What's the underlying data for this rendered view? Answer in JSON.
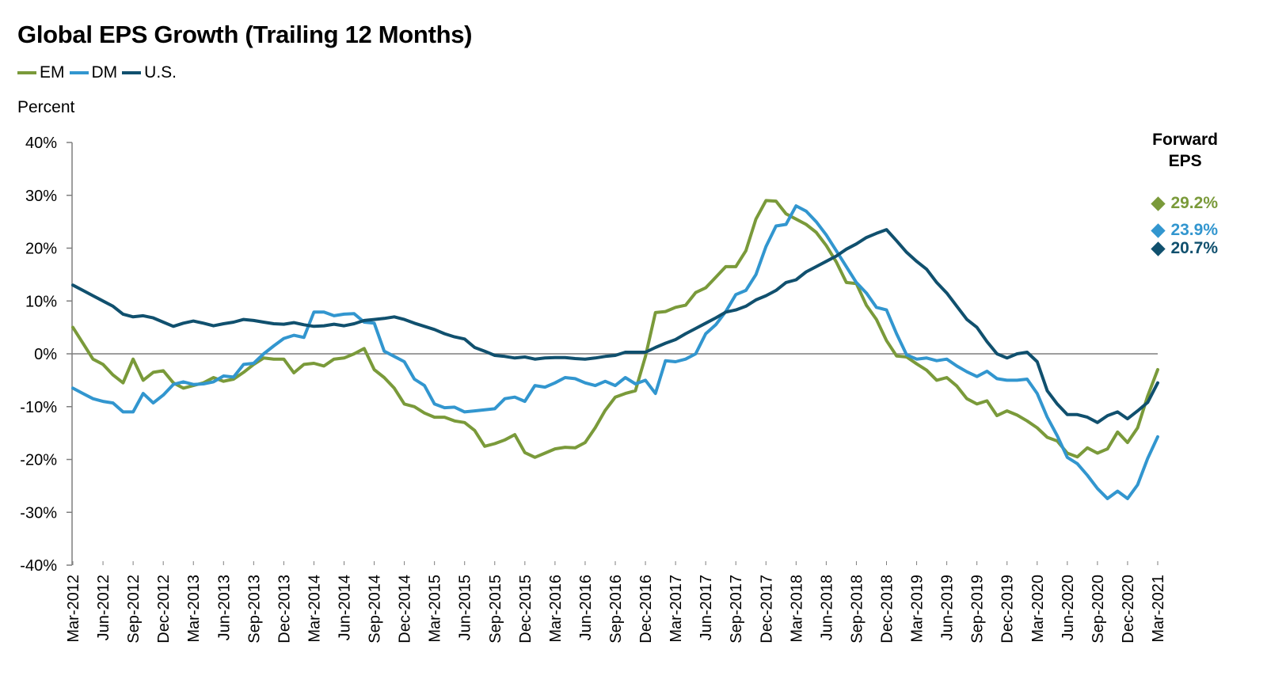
{
  "chart_data": {
    "type": "line",
    "title": "Global EPS Growth (Trailing 12 Months)",
    "ylabel": "Percent",
    "ylim": [
      -40,
      40
    ],
    "yticks": [
      "-40%",
      "-30%",
      "-20%",
      "-10%",
      "0%",
      "10%",
      "20%",
      "30%",
      "40%"
    ],
    "yvalues": [
      -40,
      -30,
      -20,
      -10,
      0,
      10,
      20,
      30,
      40
    ],
    "x_tick_labels": [
      "Mar-2012",
      "Jun-2012",
      "Sep-2012",
      "Dec-2012",
      "Mar-2013",
      "Jun-2013",
      "Sep-2013",
      "Dec-2013",
      "Mar-2014",
      "Jun-2014",
      "Sep-2014",
      "Dec-2014",
      "Mar-2015",
      "Jun-2015",
      "Sep-2015",
      "Dec-2015",
      "Mar-2016",
      "Jun-2016",
      "Sep-2016",
      "Dec-2016",
      "Mar-2017",
      "Jun-2017",
      "Sep-2017",
      "Dec-2017",
      "Mar-2018",
      "Jun-2018",
      "Sep-2018",
      "Dec-2018",
      "Mar-2019",
      "Jun-2019",
      "Sep-2019",
      "Dec-2019",
      "Mar-2020",
      "Jun-2020",
      "Sep-2020",
      "Dec-2020",
      "Mar-2021"
    ],
    "series": [
      {
        "name": "EM",
        "color": "#7a9a3a",
        "values": [
          5,
          2,
          -1,
          -2,
          -4,
          -5.5,
          -1,
          -5,
          -3.5,
          -3.2,
          -5.5,
          -6.5,
          -6,
          -5.5,
          -4.5,
          -5.2,
          -4.8,
          -3.5,
          -2,
          -0.8,
          -1,
          -1,
          -3.6,
          -2,
          -1.8,
          -2.3,
          -1,
          -0.8,
          0,
          1,
          -3,
          -4.5,
          -6.5,
          -9.5,
          -10,
          -11.2,
          -12,
          -12,
          -12.7,
          -13,
          -14.5,
          -17.5,
          -17,
          -16.3,
          -15.3,
          -18.7,
          -19.6,
          -18.8,
          -18,
          -17.7,
          -17.8,
          -16.8,
          -14,
          -10.7,
          -8.2,
          -7.5,
          -7,
          -0.5,
          7.8,
          8,
          8.8,
          9.2,
          11.6,
          12.5,
          14.5,
          16.5,
          16.5,
          19.5,
          25.5,
          29,
          28.9,
          26.5,
          25.5,
          24.5,
          23,
          20.5,
          17.4,
          13.5,
          13.3,
          9.2,
          6.5,
          2.5,
          -0.4,
          -0.6,
          -1.9,
          -3.1,
          -5,
          -4.5,
          -6.1,
          -8.5,
          -9.5,
          -8.9,
          -11.7,
          -10.8,
          -11.6,
          -12.7,
          -14,
          -15.8,
          -16.5,
          -18.8,
          -19.5,
          -17.8,
          -18.8,
          -18,
          -14.8,
          -16.8,
          -14,
          -8,
          -3
        ]
      },
      {
        "name": "DM",
        "color": "#3296cf",
        "values": [
          -6.5,
          -7.5,
          -8.5,
          -9,
          -9.3,
          -11,
          -11,
          -7.5,
          -9.3,
          -7.8,
          -5.8,
          -5.3,
          -5.8,
          -5.7,
          -5.3,
          -4.2,
          -4.4,
          -2,
          -1.8,
          0,
          1.5,
          2.9,
          3.5,
          3.1,
          7.9,
          7.9,
          7.2,
          7.5,
          7.6,
          6,
          5.8,
          0.5,
          -0.5,
          -1.5,
          -4.8,
          -6,
          -9.5,
          -10.2,
          -10.1,
          -11,
          -10.8,
          -10.6,
          -10.4,
          -8.5,
          -8.2,
          -9,
          -6,
          -6.3,
          -5.5,
          -4.5,
          -4.7,
          -5.5,
          -6,
          -5.2,
          -6,
          -4.5,
          -5.7,
          -5,
          -7.5,
          -1.3,
          -1.5,
          -1,
          0,
          3.8,
          5.5,
          8,
          11.2,
          12,
          15,
          20.3,
          24.2,
          24.5,
          28,
          27,
          25,
          22.5,
          19.5,
          16.5,
          13.5,
          11.5,
          8.8,
          8.3,
          3.8,
          -0.2,
          -1,
          -0.8,
          -1.3,
          -1,
          -2.3,
          -3.4,
          -4.3,
          -3.3,
          -4.7,
          -5,
          -5,
          -4.8,
          -7.5,
          -12,
          -15.5,
          -19.6,
          -20.8,
          -23,
          -25.5,
          -27.4,
          -26,
          -27.4,
          -24.8,
          -19.8,
          -15.7
        ]
      },
      {
        "name": "U.S.",
        "color": "#10506e",
        "values": [
          13,
          12,
          11,
          10,
          9,
          7.5,
          7,
          7.2,
          6.8,
          6,
          5.2,
          5.8,
          6.2,
          5.8,
          5.3,
          5.7,
          6,
          6.5,
          6.3,
          6,
          5.7,
          5.6,
          5.9,
          5.5,
          5.2,
          5.3,
          5.6,
          5.3,
          5.7,
          6.3,
          6.5,
          6.7,
          7,
          6.5,
          5.8,
          5.2,
          4.6,
          3.8,
          3.2,
          2.8,
          1.2,
          0.5,
          -0.3,
          -0.5,
          -0.8,
          -0.6,
          -1,
          -0.8,
          -0.7,
          -0.7,
          -0.9,
          -1,
          -0.8,
          -0.5,
          -0.3,
          0.3,
          0.3,
          0.3,
          1.2,
          2,
          2.7,
          3.8,
          4.8,
          5.8,
          6.8,
          7.9,
          8.3,
          9,
          10.2,
          11,
          12,
          13.5,
          14,
          15.5,
          16.5,
          17.5,
          18.5,
          19.8,
          20.8,
          22,
          22.8,
          23.5,
          21.4,
          19.2,
          17.5,
          16,
          13.5,
          11.5,
          9,
          6.5,
          5,
          2.3,
          0,
          -0.8,
          0,
          0.3,
          -1.5,
          -7,
          -9.5,
          -11.5,
          -11.5,
          -12,
          -13,
          -11.7,
          -11,
          -12.3,
          -10.8,
          -9.2,
          -5.5
        ]
      }
    ],
    "forward_eps": {
      "heading_line1": "Forward",
      "heading_line2": "EPS",
      "items": [
        {
          "name": "EM",
          "label": "29.2%",
          "value": 29.2,
          "color": "#7a9a3a"
        },
        {
          "name": "DM",
          "label": "23.9%",
          "value": 23.9,
          "color": "#3296cf"
        },
        {
          "name": "U.S.",
          "label": "20.7%",
          "value": 20.7,
          "color": "#10506e"
        }
      ]
    },
    "grid": false,
    "legend_position": "top-left"
  }
}
